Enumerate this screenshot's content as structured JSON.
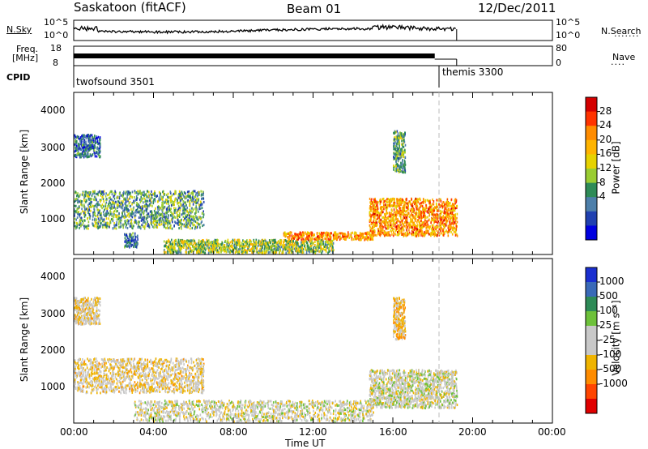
{
  "header": {
    "station": "Saskatoon (fitACF)",
    "beam": "Beam 01",
    "date": "12/Dec/2011"
  },
  "panels": {
    "nsky": {
      "label": "N.Sky",
      "ticks": [
        "10^5",
        "10^0"
      ]
    },
    "nsearch": {
      "label": "N.Search",
      "ticks": [
        "10^5",
        "10^0"
      ]
    },
    "freq": {
      "label_line1": "Freq.",
      "label_line2": "[MHz]",
      "ticks": [
        "18",
        "8"
      ]
    },
    "nave": {
      "label": "Nave",
      "ticks": [
        "80",
        "0"
      ]
    },
    "cpid": {
      "label": "CPID",
      "segments": [
        "twofsound 3501",
        "themis 3300"
      ]
    }
  },
  "colorbars": {
    "power": {
      "title": "Power [dB]",
      "labels": [
        "28",
        "24",
        "20",
        "16",
        "12",
        "8",
        "4"
      ],
      "colors": [
        "#d40000",
        "#ff3300",
        "#ff8c00",
        "#ffb400",
        "#e6d200",
        "#9acd32",
        "#2e8b57",
        "#4d7faa",
        "#2040b0",
        "#0000e0"
      ]
    },
    "velocity": {
      "title": "Velocity [m s⁻¹]",
      "labels": [
        "1000",
        "500",
        "100",
        "25",
        "-25",
        "-100",
        "-500",
        "-1000"
      ],
      "colors": [
        "#1a2fd0",
        "#3a6ab8",
        "#2e8b57",
        "#6dc13a",
        "#c8c8c8",
        "#c8c8c8",
        "#f0b400",
        "#ff8c00",
        "#ff4500",
        "#e00000"
      ]
    }
  },
  "axes": {
    "ylabel": "Slant Range [km]",
    "yticks": [
      "1000",
      "2000",
      "3000",
      "4000"
    ],
    "xticks": [
      "00:00",
      "04:00",
      "08:00",
      "12:00",
      "16:00",
      "20:00",
      "00:00"
    ],
    "xlabel": "Time UT"
  },
  "chart_data": [
    {
      "type": "heatmap",
      "title": "Power [dB]",
      "xlabel": "Time UT",
      "ylabel": "Slant Range [km]",
      "xlim": [
        0,
        24
      ],
      "ylim": [
        180,
        4500
      ],
      "zlim": [
        0,
        30
      ],
      "x_unit": "hours UT",
      "regions": [
        {
          "t": [
            0.0,
            6.5
          ],
          "r": [
            900,
            1900
          ],
          "z": 10
        },
        {
          "t": [
            0.0,
            1.3
          ],
          "r": [
            2800,
            3400
          ],
          "z": 6
        },
        {
          "t": [
            2.5,
            3.2
          ],
          "r": [
            400,
            800
          ],
          "z": 6
        },
        {
          "t": [
            4.5,
            13.0
          ],
          "r": [
            250,
            600
          ],
          "z": 14
        },
        {
          "t": [
            10.5,
            15.0
          ],
          "r": [
            600,
            800
          ],
          "z": 22
        },
        {
          "t": [
            14.8,
            19.2
          ],
          "r": [
            700,
            1700
          ],
          "z": 22
        },
        {
          "t": [
            16.0,
            16.6
          ],
          "r": [
            2400,
            3500
          ],
          "z": 10
        }
      ]
    },
    {
      "type": "heatmap",
      "title": "Velocity [m s⁻¹]",
      "xlabel": "Time UT",
      "ylabel": "Slant Range [km]",
      "xlim": [
        0,
        24
      ],
      "ylim": [
        180,
        4500
      ],
      "zlim": [
        -1000,
        1000
      ],
      "x_unit": "hours UT",
      "regions": [
        {
          "t": [
            0.0,
            6.5
          ],
          "r": [
            1000,
            1900
          ],
          "z": -150
        },
        {
          "t": [
            0.0,
            1.3
          ],
          "r": [
            2800,
            3500
          ],
          "z": -150
        },
        {
          "t": [
            3.0,
            15.0
          ],
          "r": [
            250,
            800
          ],
          "z": -10
        },
        {
          "t": [
            14.8,
            19.2
          ],
          "r": [
            600,
            1600
          ],
          "z": 0
        },
        {
          "t": [
            16.0,
            16.6
          ],
          "r": [
            2400,
            3500
          ],
          "z": -300
        }
      ]
    }
  ]
}
